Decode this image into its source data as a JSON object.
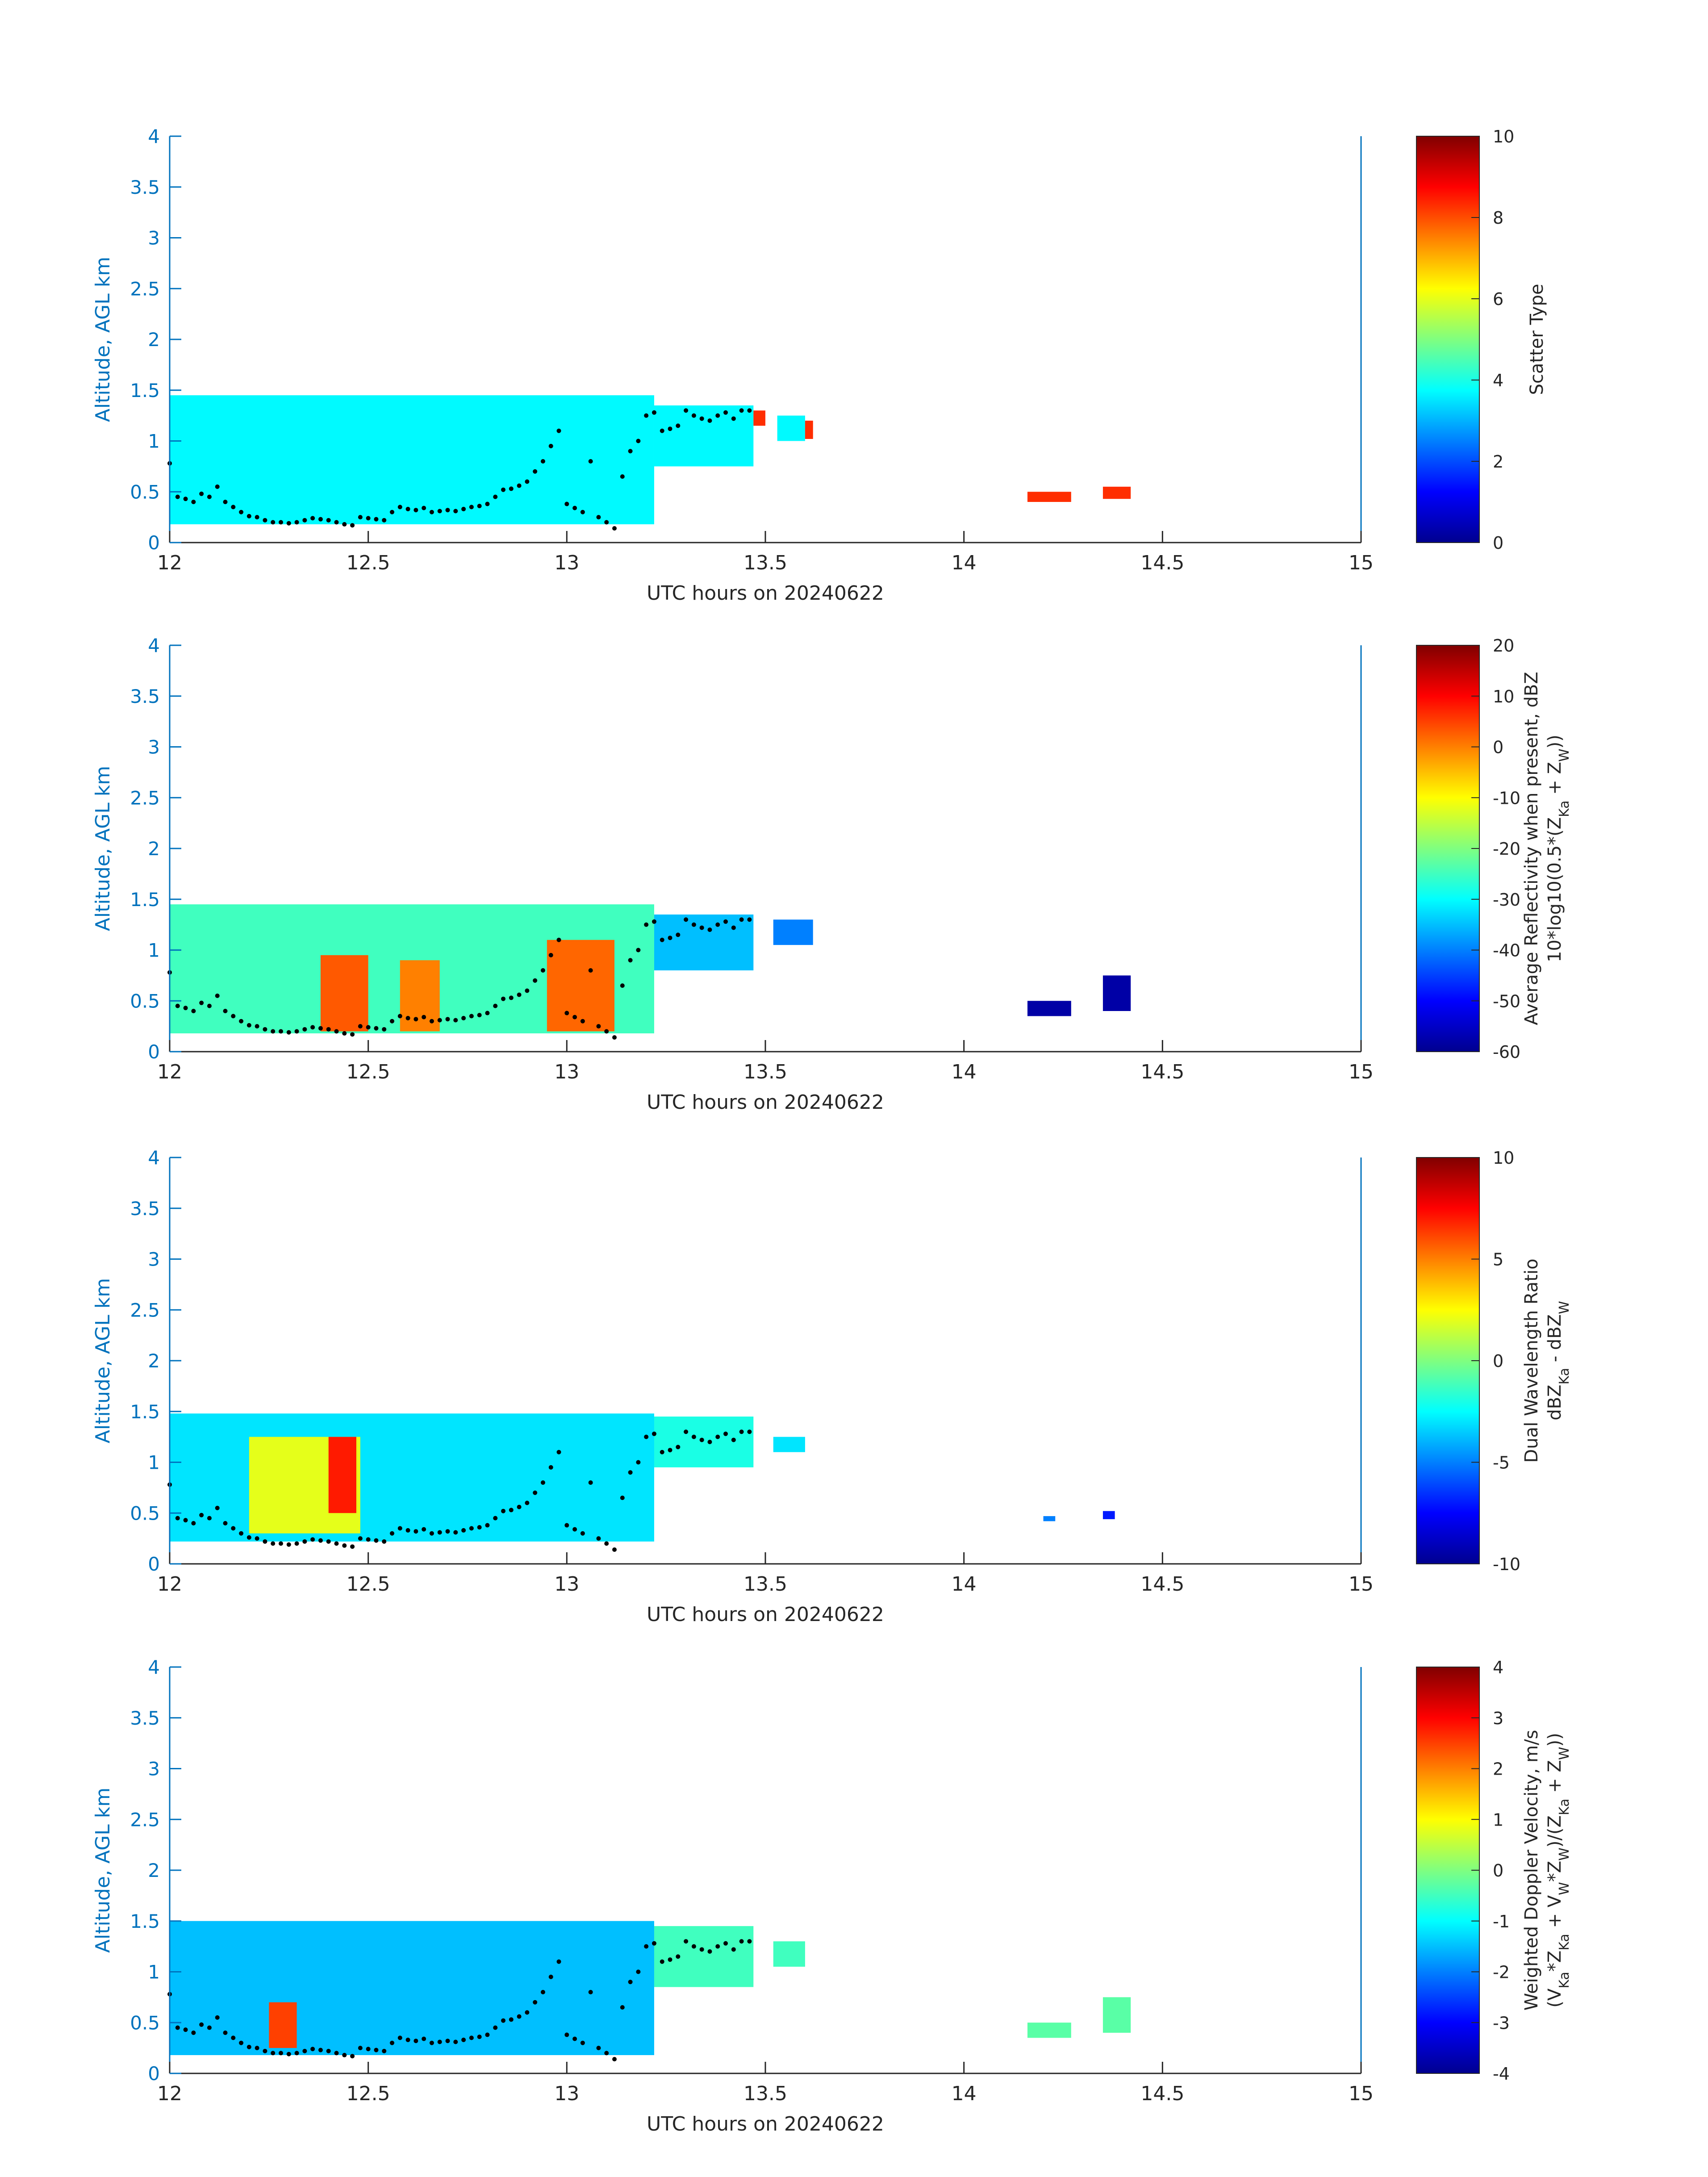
{
  "figure": {
    "xlabel": "UTC hours on 20240622",
    "ylabel": "Altitude, AGL km"
  },
  "chart_data": [
    {
      "type": "heatmap",
      "xlabel": "UTC hours on 20240622",
      "ylabel": "Altitude, AGL km",
      "xlim": [
        12,
        15
      ],
      "ylim": [
        0,
        4
      ],
      "xticks": [
        "12",
        "12.5",
        "13",
        "13.5",
        "14",
        "14.5",
        "15"
      ],
      "yticks": [
        "0",
        "0.5",
        "1",
        "1.5",
        "2",
        "2.5",
        "3",
        "3.5",
        "4"
      ],
      "colorbar": {
        "label_lines": [
          "Scatter Type"
        ],
        "clim": [
          0,
          10
        ],
        "ticks": [
          "0",
          "2",
          "4",
          "6",
          "8",
          "10"
        ]
      },
      "regions": [
        {
          "x": [
            12.0,
            13.22
          ],
          "y_bottom": 0.18,
          "y_top": 1.45,
          "value": 3.7
        },
        {
          "x": [
            13.22,
            13.47
          ],
          "y_bottom": 0.75,
          "y_top": 1.35,
          "value": 3.7
        },
        {
          "x": [
            13.47,
            13.5
          ],
          "y_bottom": 1.15,
          "y_top": 1.3,
          "value": 8.3
        },
        {
          "x": [
            13.53,
            13.6
          ],
          "y_bottom": 1.0,
          "y_top": 1.25,
          "value": 3.7
        },
        {
          "x": [
            13.6,
            13.62
          ],
          "y_bottom": 1.02,
          "y_top": 1.2,
          "value": 8.3
        },
        {
          "x": [
            14.16,
            14.27
          ],
          "y_bottom": 0.4,
          "y_top": 0.5,
          "value": 8.3
        },
        {
          "x": [
            14.35,
            14.42
          ],
          "y_bottom": 0.43,
          "y_top": 0.55,
          "value": 8.3
        }
      ]
    },
    {
      "type": "heatmap",
      "xlabel": "UTC hours on 20240622",
      "ylabel": "Altitude, AGL km",
      "xlim": [
        12,
        15
      ],
      "ylim": [
        0,
        4
      ],
      "xticks": [
        "12",
        "12.5",
        "13",
        "13.5",
        "14",
        "14.5",
        "15"
      ],
      "yticks": [
        "0",
        "0.5",
        "1",
        "1.5",
        "2",
        "2.5",
        "3",
        "3.5",
        "4"
      ],
      "colorbar": {
        "label_lines": [
          "Average Reflectivity when present, dBZ",
          "10*log10(0.5*(Z",
          "Ka",
          " + Z",
          "W",
          "))"
        ],
        "clim": [
          -60,
          20
        ],
        "ticks": [
          "-60",
          "-50",
          "-40",
          "-30",
          "-20",
          "-10",
          "0",
          "10",
          "20"
        ]
      },
      "regions": [
        {
          "x": [
            12.0,
            13.22
          ],
          "y_bottom": 0.18,
          "y_top": 1.45,
          "value": -25
        },
        {
          "x": [
            12.38,
            12.5
          ],
          "y_bottom": 0.2,
          "y_top": 0.95,
          "value": 3
        },
        {
          "x": [
            12.58,
            12.68
          ],
          "y_bottom": 0.2,
          "y_top": 0.9,
          "value": 0
        },
        {
          "x": [
            12.95,
            13.12
          ],
          "y_bottom": 0.2,
          "y_top": 1.1,
          "value": 2
        },
        {
          "x": [
            13.22,
            13.47
          ],
          "y_bottom": 0.8,
          "y_top": 1.35,
          "value": -35
        },
        {
          "x": [
            13.52,
            13.62
          ],
          "y_bottom": 1.05,
          "y_top": 1.3,
          "value": -40
        },
        {
          "x": [
            14.16,
            14.27
          ],
          "y_bottom": 0.35,
          "y_top": 0.5,
          "value": -57
        },
        {
          "x": [
            14.35,
            14.42
          ],
          "y_bottom": 0.4,
          "y_top": 0.75,
          "value": -57
        }
      ]
    },
    {
      "type": "heatmap",
      "xlabel": "UTC hours on 20240622",
      "ylabel": "Altitude, AGL km",
      "xlim": [
        12,
        15
      ],
      "ylim": [
        0,
        4
      ],
      "xticks": [
        "12",
        "12.5",
        "13",
        "13.5",
        "14",
        "14.5",
        "15"
      ],
      "yticks": [
        "0",
        "0.5",
        "1",
        "1.5",
        "2",
        "2.5",
        "3",
        "3.5",
        "4"
      ],
      "colorbar": {
        "label_lines": [
          "Dual Wavelength Ratio",
          "dBZ",
          "Ka",
          " - dBZ",
          "W"
        ],
        "clim": [
          -10,
          10
        ],
        "ticks": [
          "-10",
          "-5",
          "0",
          "5",
          "10"
        ]
      },
      "regions": [
        {
          "x": [
            12.0,
            13.22
          ],
          "y_bottom": 0.22,
          "y_top": 1.48,
          "value": -3
        },
        {
          "x": [
            12.2,
            12.48
          ],
          "y_bottom": 0.3,
          "y_top": 1.25,
          "value": 2
        },
        {
          "x": [
            12.4,
            12.47
          ],
          "y_bottom": 0.5,
          "y_top": 1.25,
          "value": 7
        },
        {
          "x": [
            13.22,
            13.47
          ],
          "y_bottom": 0.95,
          "y_top": 1.45,
          "value": -2
        },
        {
          "x": [
            13.52,
            13.6
          ],
          "y_bottom": 1.1,
          "y_top": 1.25,
          "value": -3
        },
        {
          "x": [
            14.2,
            14.23
          ],
          "y_bottom": 0.42,
          "y_top": 0.47,
          "value": -5
        },
        {
          "x": [
            14.35,
            14.38
          ],
          "y_bottom": 0.44,
          "y_top": 0.52,
          "value": -7
        }
      ]
    },
    {
      "type": "heatmap",
      "xlabel": "UTC hours on 20240622",
      "ylabel": "Altitude, AGL km",
      "xlim": [
        12,
        15
      ],
      "ylim": [
        0,
        4
      ],
      "xticks": [
        "12",
        "12.5",
        "13",
        "13.5",
        "14",
        "14.5",
        "15"
      ],
      "yticks": [
        "0",
        "0.5",
        "1",
        "1.5",
        "2",
        "2.5",
        "3",
        "3.5",
        "4"
      ],
      "colorbar": {
        "label_lines": [
          "Weighted Doppler Velocity, m/s",
          "(V",
          "Ka",
          "*Z",
          "Ka",
          " + V",
          "W",
          "*Z",
          "W",
          ")/(Z",
          "Ka",
          " + Z",
          "W",
          "))"
        ],
        "clim": [
          -4,
          4
        ],
        "ticks": [
          "-4",
          "-3",
          "-2",
          "-1",
          "0",
          "1",
          "2",
          "3",
          "4"
        ]
      },
      "regions": [
        {
          "x": [
            12.0,
            13.22
          ],
          "y_bottom": 0.18,
          "y_top": 1.5,
          "value": -1.5
        },
        {
          "x": [
            12.25,
            12.32
          ],
          "y_bottom": 0.25,
          "y_top": 0.7,
          "value": 2.5
        },
        {
          "x": [
            13.22,
            13.47
          ],
          "y_bottom": 0.85,
          "y_top": 1.45,
          "value": -0.5
        },
        {
          "x": [
            13.52,
            13.6
          ],
          "y_bottom": 1.05,
          "y_top": 1.3,
          "value": -0.5
        },
        {
          "x": [
            14.16,
            14.27
          ],
          "y_bottom": 0.35,
          "y_top": 0.5,
          "value": -0.3
        },
        {
          "x": [
            14.35,
            14.42
          ],
          "y_bottom": 0.4,
          "y_top": 0.75,
          "value": -0.3
        }
      ]
    }
  ],
  "overlay_points": {
    "x": [
      12.0,
      12.02,
      12.04,
      12.06,
      12.08,
      12.1,
      12.12,
      12.14,
      12.16,
      12.18,
      12.2,
      12.22,
      12.24,
      12.26,
      12.28,
      12.3,
      12.32,
      12.34,
      12.36,
      12.38,
      12.4,
      12.42,
      12.44,
      12.46,
      12.48,
      12.5,
      12.52,
      12.54,
      12.56,
      12.58,
      12.6,
      12.62,
      12.64,
      12.66,
      12.68,
      12.7,
      12.72,
      12.74,
      12.76,
      12.78,
      12.8,
      12.82,
      12.84,
      12.86,
      12.88,
      12.9,
      12.92,
      12.94,
      12.96,
      12.98,
      13.0,
      13.02,
      13.04,
      13.06,
      13.08,
      13.1,
      13.12,
      13.14,
      13.16,
      13.18,
      13.2,
      13.22,
      13.24,
      13.26,
      13.28,
      13.3,
      13.32,
      13.34,
      13.36,
      13.38,
      13.4,
      13.42,
      13.44,
      13.46
    ],
    "y": [
      0.78,
      0.45,
      0.43,
      0.4,
      0.48,
      0.45,
      0.55,
      0.4,
      0.35,
      0.3,
      0.26,
      0.25,
      0.22,
      0.2,
      0.2,
      0.19,
      0.2,
      0.22,
      0.24,
      0.23,
      0.22,
      0.2,
      0.18,
      0.17,
      0.25,
      0.24,
      0.23,
      0.22,
      0.3,
      0.35,
      0.33,
      0.32,
      0.34,
      0.3,
      0.31,
      0.32,
      0.31,
      0.33,
      0.35,
      0.36,
      0.38,
      0.45,
      0.52,
      0.53,
      0.56,
      0.6,
      0.7,
      0.8,
      0.95,
      1.1,
      0.38,
      0.34,
      0.3,
      0.8,
      0.25,
      0.2,
      0.14,
      0.65,
      0.9,
      1.0,
      1.25,
      1.28,
      1.1,
      1.12,
      1.15,
      1.3,
      1.25,
      1.22,
      1.2,
      1.25,
      1.28,
      1.22,
      1.3,
      1.3
    ]
  }
}
